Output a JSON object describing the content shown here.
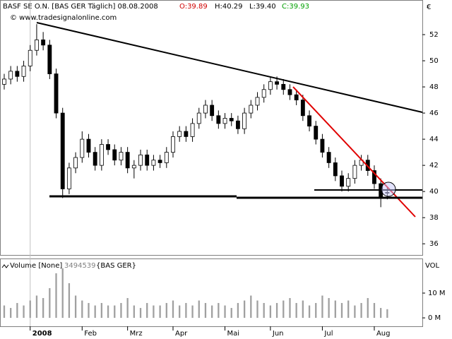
{
  "chart_data": [
    {
      "type": "candlestick",
      "title": "BASF SE O.N. [BAS GER Täglich] 08.08.2008",
      "quote": {
        "open": "O:39.89",
        "high": "H:40.29",
        "low": "L:39.40",
        "close": "C:39.93"
      },
      "source": "© www.tradesignalonline.com",
      "unit": "€",
      "color_up": "#ffffff",
      "color_down": "#000000",
      "open": [
        48.2,
        48.6,
        49.2,
        48.8,
        49.6,
        50.8,
        51.6,
        51.2,
        49.0,
        46.0,
        40.2,
        41.8,
        42.6,
        44.0,
        43.0,
        42.0,
        43.6,
        43.2,
        42.4,
        43.0,
        41.8,
        42.0,
        42.8,
        42.0,
        42.4,
        42.2,
        43.0,
        44.2,
        44.6,
        44.2,
        45.2,
        46.0,
        46.6,
        45.8,
        45.2,
        45.6,
        45.4,
        44.8,
        46.0,
        46.6,
        47.2,
        47.8,
        48.4,
        48.2,
        47.8,
        47.4,
        47.0,
        45.8,
        45.0,
        44.0,
        43.0,
        42.2,
        41.2,
        40.4,
        41.0,
        42.0,
        42.4,
        41.6,
        40.6,
        39.89
      ],
      "high": [
        49.0,
        49.6,
        49.6,
        50.0,
        51.2,
        52.8,
        52.2,
        51.6,
        49.4,
        46.4,
        42.2,
        43.0,
        44.6,
        44.4,
        43.4,
        44.0,
        44.0,
        43.6,
        43.4,
        43.4,
        42.4,
        43.2,
        43.2,
        42.8,
        42.8,
        43.4,
        44.6,
        45.0,
        45.0,
        45.6,
        46.4,
        47.0,
        47.0,
        46.2,
        46.0,
        46.0,
        45.8,
        46.4,
        47.0,
        47.6,
        48.2,
        48.8,
        48.8,
        48.6,
        48.2,
        47.8,
        47.4,
        46.2,
        45.4,
        44.4,
        43.4,
        42.6,
        41.6,
        41.4,
        42.4,
        42.8,
        42.8,
        42.0,
        41.0,
        40.29
      ],
      "low": [
        47.8,
        48.2,
        48.4,
        48.4,
        49.2,
        50.4,
        50.8,
        48.6,
        45.6,
        39.5,
        39.8,
        41.4,
        42.2,
        42.6,
        41.6,
        41.6,
        42.8,
        42.0,
        42.0,
        41.4,
        41.0,
        41.6,
        41.6,
        41.6,
        41.8,
        41.8,
        42.6,
        43.8,
        43.8,
        43.8,
        44.8,
        45.6,
        45.4,
        44.8,
        44.8,
        45.0,
        44.4,
        44.4,
        45.6,
        46.2,
        46.8,
        47.4,
        47.8,
        47.4,
        47.0,
        46.6,
        45.4,
        44.6,
        43.6,
        42.6,
        41.8,
        40.8,
        40.0,
        40.0,
        40.6,
        41.6,
        41.2,
        40.2,
        38.8,
        39.4
      ],
      "close": [
        48.6,
        49.2,
        48.8,
        49.6,
        50.8,
        51.6,
        51.2,
        49.0,
        46.0,
        40.2,
        41.8,
        42.6,
        44.0,
        43.0,
        42.0,
        43.6,
        43.2,
        42.4,
        43.0,
        41.8,
        42.0,
        42.8,
        42.0,
        42.4,
        42.2,
        43.0,
        44.2,
        44.6,
        44.2,
        45.2,
        46.0,
        46.6,
        45.8,
        45.2,
        45.6,
        45.4,
        44.8,
        46.0,
        46.6,
        47.2,
        47.8,
        48.4,
        48.2,
        47.8,
        47.4,
        47.0,
        45.8,
        45.0,
        44.0,
        43.0,
        42.2,
        41.2,
        40.4,
        41.0,
        42.0,
        42.4,
        41.6,
        40.6,
        39.6,
        39.93
      ],
      "xlim": [
        -0.65,
        64.4
      ],
      "xticks": [
        {
          "value": 4,
          "label": "2008"
        },
        {
          "value": 12,
          "label": "Feb"
        },
        {
          "value": 19,
          "label": "Mrz"
        },
        {
          "value": 26,
          "label": "Apr"
        },
        {
          "value": 34,
          "label": "Mai"
        },
        {
          "value": 41,
          "label": "Jun"
        },
        {
          "value": 49,
          "label": "Jul"
        },
        {
          "value": 57,
          "label": "Aug"
        }
      ],
      "ylim": [
        35.2,
        53.73
      ],
      "yticks": [
        36,
        38,
        40,
        42,
        44,
        46,
        48,
        50,
        52
      ]
    },
    {
      "type": "bar",
      "title": "Volume [None]",
      "last": "3494539",
      "symbol": "{BAS GER}",
      "axis_label": "VOL",
      "color": "#a0a0a0",
      "values": [
        5,
        4,
        6,
        5,
        7,
        9,
        8,
        12,
        18,
        20,
        14,
        9,
        7,
        6,
        5,
        6,
        5,
        5,
        6,
        8,
        5,
        4,
        6,
        5,
        5,
        6,
        7,
        5,
        6,
        5,
        7,
        6,
        5,
        6,
        5,
        4,
        6,
        7,
        9,
        7,
        6,
        5,
        6,
        7,
        8,
        6,
        7,
        5,
        6,
        9,
        8,
        7,
        6,
        7,
        5,
        6,
        8,
        6,
        4,
        3.494539
      ],
      "ylim": [
        -3.4,
        23.4
      ],
      "yticks": [
        {
          "value": 0,
          "label": "0 M"
        },
        {
          "value": 10,
          "label": "10 M"
        }
      ]
    }
  ]
}
